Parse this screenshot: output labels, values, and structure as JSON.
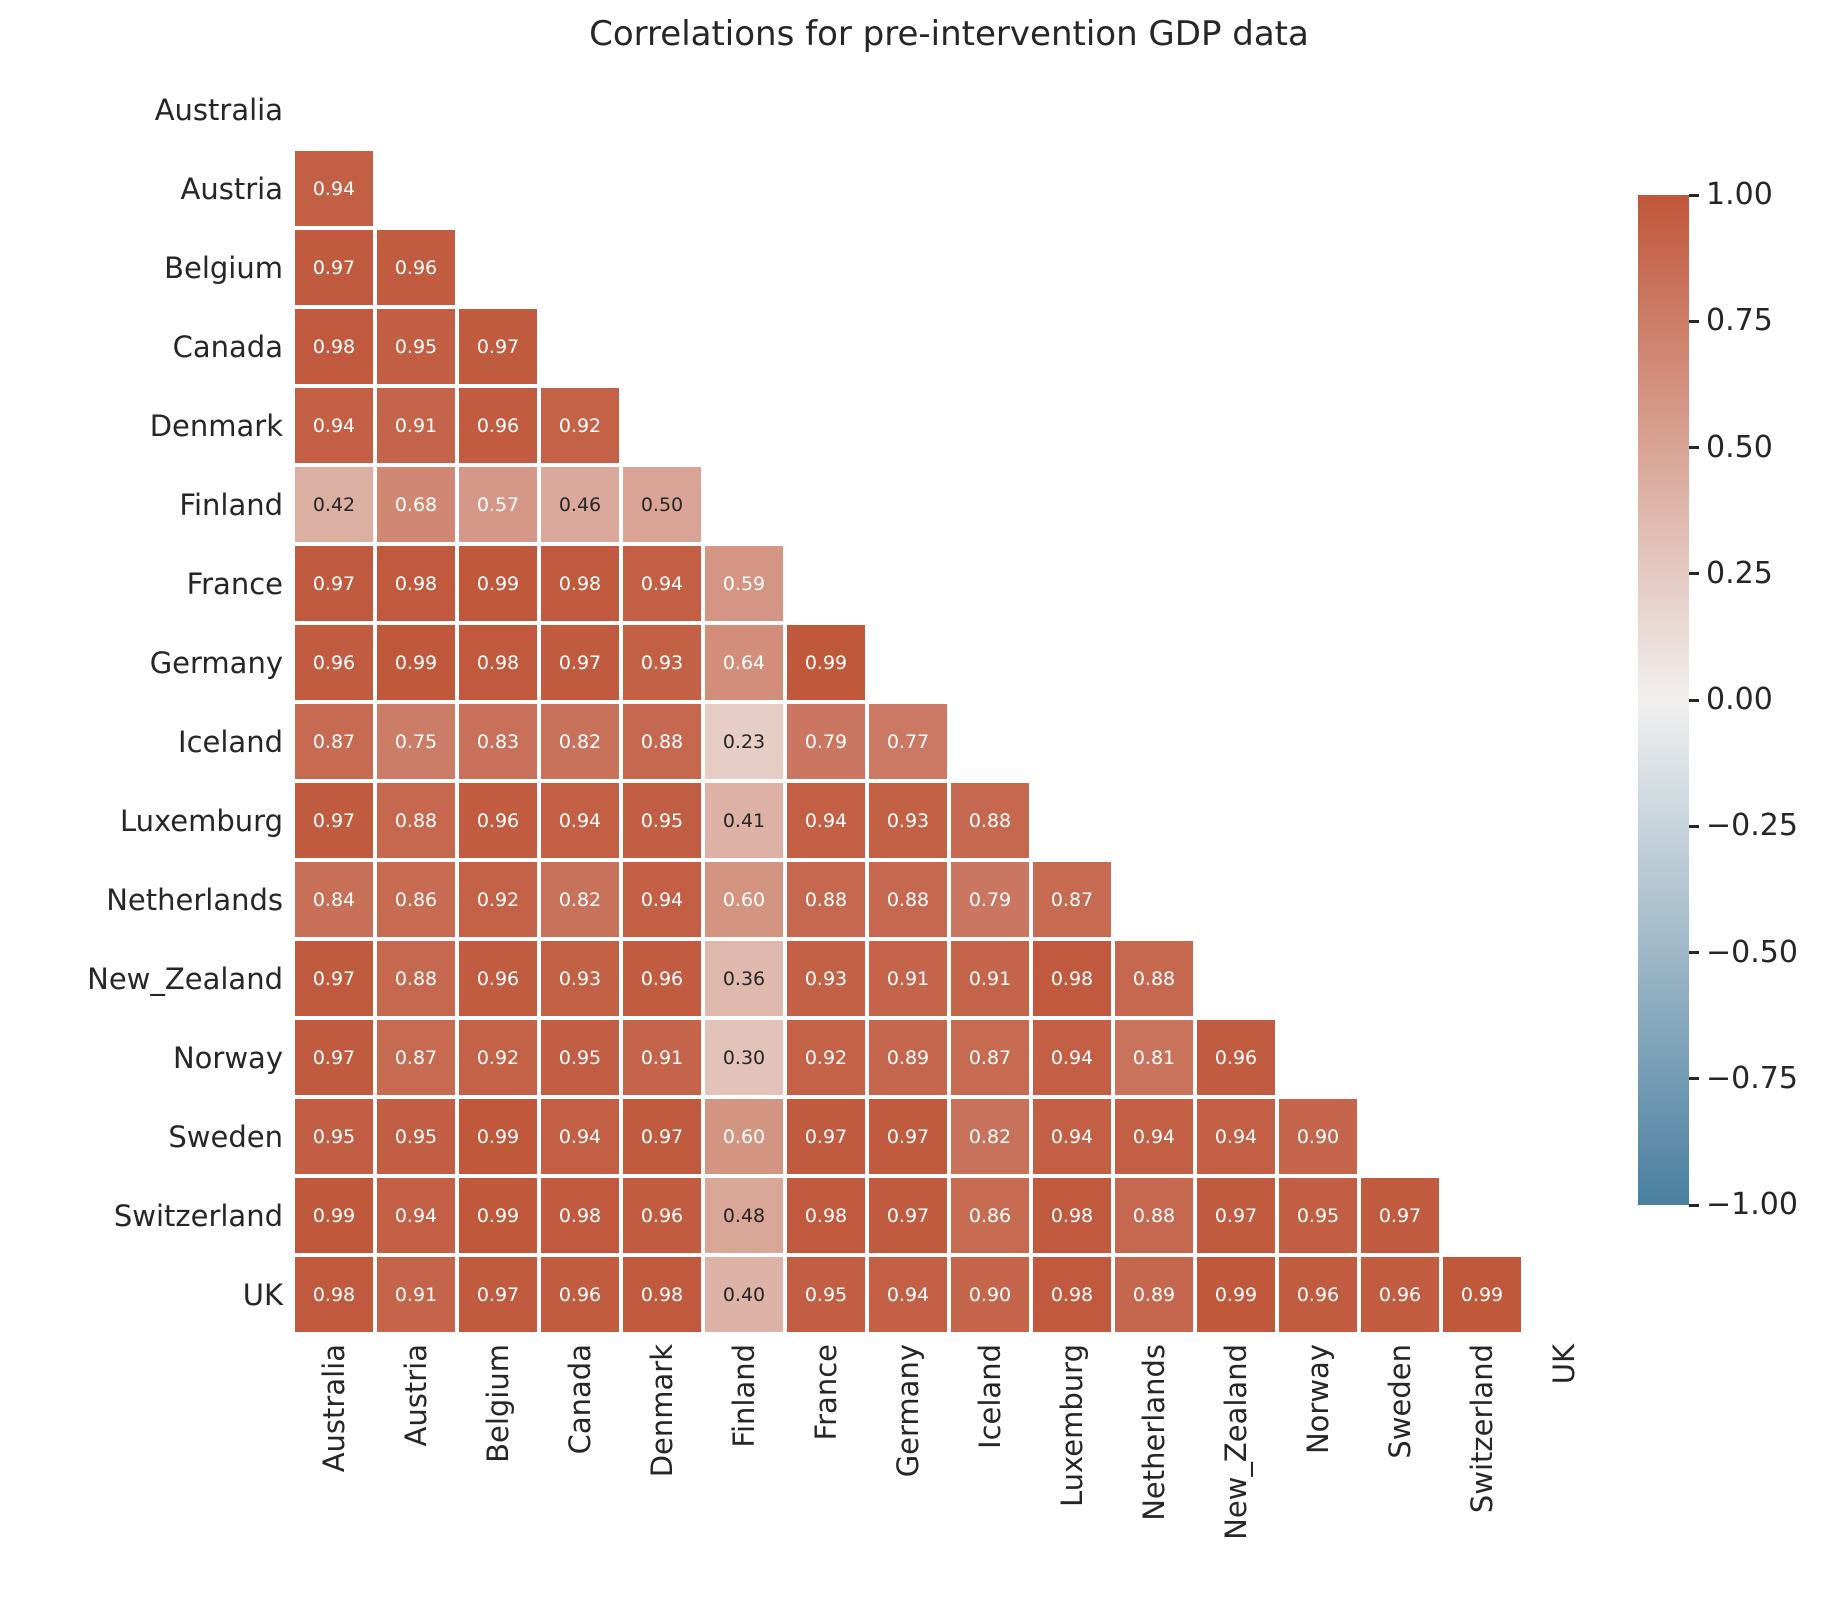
{
  "title": "Correlations for pre-intervention GDP data",
  "chart_data": {
    "type": "heatmap",
    "title": "Correlations for pre-intervention GDP data",
    "categories": [
      "Australia",
      "Austria",
      "Belgium",
      "Canada",
      "Denmark",
      "Finland",
      "France",
      "Germany",
      "Iceland",
      "Luxemburg",
      "Netherlands",
      "New_Zealand",
      "Norway",
      "Sweden",
      "Switzerland",
      "UK"
    ],
    "mask": "upper-triangle-and-diagonal-hidden",
    "rows": [
      {
        "name": "Australia",
        "values": []
      },
      {
        "name": "Austria",
        "values": [
          0.94
        ]
      },
      {
        "name": "Belgium",
        "values": [
          0.97,
          0.96
        ]
      },
      {
        "name": "Canada",
        "values": [
          0.98,
          0.95,
          0.97
        ]
      },
      {
        "name": "Denmark",
        "values": [
          0.94,
          0.91,
          0.96,
          0.92
        ]
      },
      {
        "name": "Finland",
        "values": [
          0.42,
          0.68,
          0.57,
          0.46,
          0.5
        ]
      },
      {
        "name": "France",
        "values": [
          0.97,
          0.98,
          0.99,
          0.98,
          0.94,
          0.59
        ]
      },
      {
        "name": "Germany",
        "values": [
          0.96,
          0.99,
          0.98,
          0.97,
          0.93,
          0.64,
          0.99
        ]
      },
      {
        "name": "Iceland",
        "values": [
          0.87,
          0.75,
          0.83,
          0.82,
          0.88,
          0.23,
          0.79,
          0.77
        ]
      },
      {
        "name": "Luxemburg",
        "values": [
          0.97,
          0.88,
          0.96,
          0.94,
          0.95,
          0.41,
          0.94,
          0.93,
          0.88
        ]
      },
      {
        "name": "Netherlands",
        "values": [
          0.84,
          0.86,
          0.92,
          0.82,
          0.94,
          0.6,
          0.88,
          0.88,
          0.79,
          0.87
        ]
      },
      {
        "name": "New_Zealand",
        "values": [
          0.97,
          0.88,
          0.96,
          0.93,
          0.96,
          0.36,
          0.93,
          0.91,
          0.91,
          0.98,
          0.88
        ]
      },
      {
        "name": "Norway",
        "values": [
          0.97,
          0.87,
          0.92,
          0.95,
          0.91,
          0.3,
          0.92,
          0.89,
          0.87,
          0.94,
          0.81,
          0.96
        ]
      },
      {
        "name": "Sweden",
        "values": [
          0.95,
          0.95,
          0.99,
          0.94,
          0.97,
          0.6,
          0.97,
          0.97,
          0.82,
          0.94,
          0.94,
          0.94,
          0.9
        ]
      },
      {
        "name": "Switzerland",
        "values": [
          0.99,
          0.94,
          0.99,
          0.98,
          0.96,
          0.48,
          0.98,
          0.97,
          0.86,
          0.98,
          0.88,
          0.97,
          0.95,
          0.97
        ]
      },
      {
        "name": "UK",
        "values": [
          0.98,
          0.91,
          0.97,
          0.96,
          0.98,
          0.4,
          0.95,
          0.94,
          0.9,
          0.98,
          0.89,
          0.99,
          0.96,
          0.96,
          0.99
        ]
      }
    ],
    "value_format": "0.00",
    "colorbar": {
      "position": "right",
      "vmin": -1.0,
      "vmax": 1.0,
      "tick_labels": [
        "1.00",
        "0.75",
        "0.50",
        "0.25",
        "0.00",
        "−0.25",
        "−0.50",
        "−0.75",
        "−1.00"
      ],
      "color_positive": "#c0563a",
      "color_center": "#f1f0ef",
      "color_negative": "#4a7fa0"
    },
    "annotation_text_colors": {
      "light": "#ffffff",
      "dark": "#262626"
    },
    "grid_line_color": "#ffffff",
    "x_tick_rotation_deg": 90
  }
}
